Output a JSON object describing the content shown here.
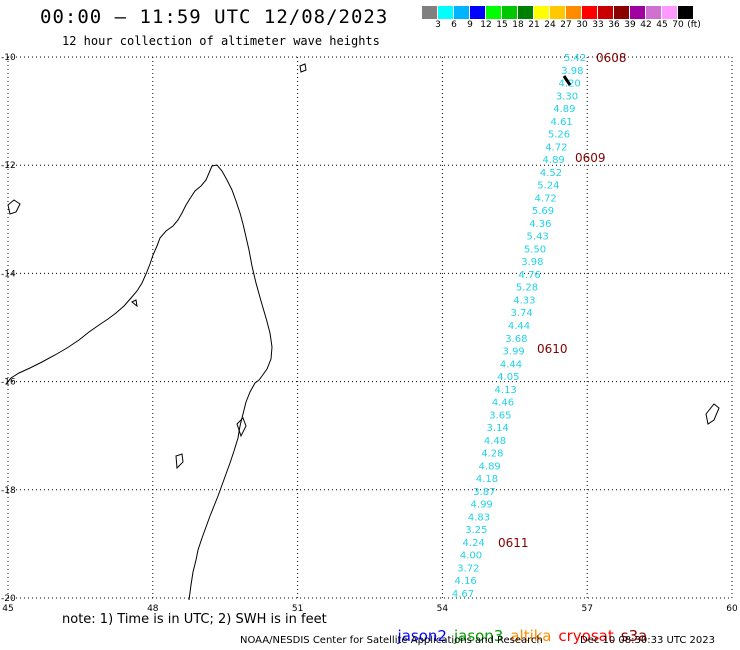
{
  "title": "00:00 – 11:59 UTC 12/08/2023",
  "subtitle": "12 hour collection of altimeter wave heights",
  "colorbar": {
    "unit": "(ft)",
    "colors": [
      "#808080",
      "#00ffff",
      "#00b4ff",
      "#0000ff",
      "#00ff00",
      "#00c800",
      "#008000",
      "#ffff00",
      "#ffc800",
      "#ff8c00",
      "#ff0000",
      "#c80000",
      "#8b0000",
      "#a000a0",
      "#d070d0",
      "#ff99ff",
      "#000000"
    ],
    "labels": [
      "3",
      "6",
      "9",
      "12",
      "15",
      "18",
      "21",
      "24",
      "27",
      "30",
      "33",
      "36",
      "39",
      "42",
      "45",
      "70"
    ]
  },
  "map": {
    "lat_labels": [
      "-10",
      "-12",
      "-14",
      "-16",
      "-18",
      "-20"
    ],
    "lon_labels": [
      "45",
      "48",
      "51",
      "54",
      "57",
      "60"
    ],
    "lat_values": [
      -10,
      -12,
      -14,
      -16,
      -18,
      -20
    ],
    "lon_values": [
      45,
      48,
      51,
      54,
      57,
      60
    ],
    "track_color": "#22d3e6",
    "time_label_color": "#800000",
    "wave_heights": [
      "5.42",
      "3.98",
      "4.20",
      "3.30",
      "4.89",
      "4.61",
      "5.26",
      "4.72",
      "4.89",
      "4.52",
      "5.24",
      "4.72",
      "5.69",
      "4.36",
      "5.43",
      "5.50",
      "3.98",
      "4.76",
      "5.28",
      "4.33",
      "3.74",
      "4.44",
      "3.68",
      "3.99",
      "4.44",
      "4.05",
      "4.13",
      "4.46",
      "3.65",
      "3.14",
      "4.48",
      "4.28",
      "4.89",
      "4.18",
      "3.87",
      "4.99",
      "4.83",
      "3.25",
      "4.24",
      "4.00",
      "3.72",
      "4.16",
      "4.67"
    ],
    "time_labels": [
      "0608",
      "0609",
      "0610",
      "0611"
    ]
  },
  "note": "note: 1) Time is in UTC; 2) SWH is in feet",
  "missions": [
    {
      "name": "jason2",
      "color": "#0000ff"
    },
    {
      "name": "jason3",
      "color": "#00a000"
    },
    {
      "name": "altika",
      "color": "#ff8c00"
    },
    {
      "name": "cryosat",
      "color": "#ff0000"
    },
    {
      "name": "s3a",
      "color": "#8b0000"
    }
  ],
  "footer_left": "NOAA/NESDIS Center for Satellite Applications and Research",
  "footer_right": "Dec 10 08:30:33 UTC 2023"
}
